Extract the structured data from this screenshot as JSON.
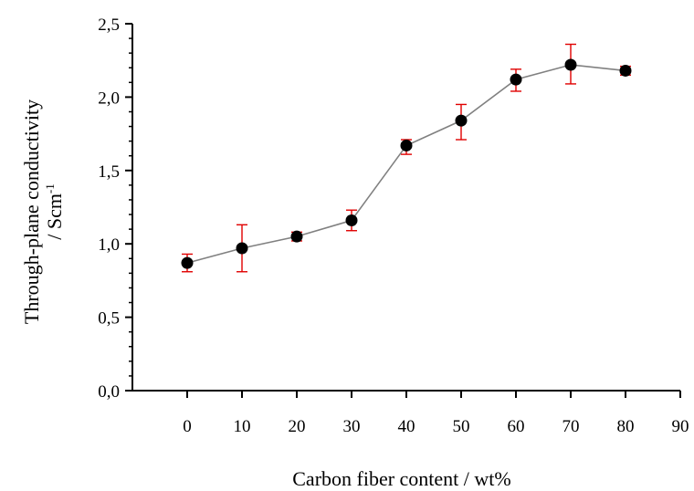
{
  "chart_data": {
    "type": "line",
    "title": "",
    "xlabel": "Carbon fiber content / wt%",
    "ylabel": "Through-plane conductivity",
    "ylabel_unit_prefix": "/ Scm",
    "ylabel_unit_exponent": "-1",
    "xlim": [
      -10,
      90
    ],
    "ylim": [
      0,
      2.5
    ],
    "x_ticks": [
      0,
      10,
      20,
      30,
      40,
      50,
      60,
      70,
      80,
      90
    ],
    "x_tick_labels": [
      "0",
      "10",
      "20",
      "30",
      "40",
      "50",
      "60",
      "70",
      "80",
      "90"
    ],
    "y_ticks": [
      0,
      0.5,
      1.0,
      1.5,
      2.0,
      2.5
    ],
    "y_tick_labels": [
      "0,0",
      "0,5",
      "1,0",
      "1,5",
      "2,0",
      "2,5"
    ],
    "grid": false,
    "legend": "none",
    "series": [
      {
        "x": [
          0,
          10,
          20,
          30,
          40,
          50,
          60,
          70,
          80
        ],
        "y": [
          0.87,
          0.97,
          1.05,
          1.16,
          1.67,
          1.84,
          2.12,
          2.22,
          2.18
        ],
        "err_low": [
          0.06,
          0.16,
          0.03,
          0.07,
          0.06,
          0.13,
          0.08,
          0.13,
          0.03
        ],
        "err_high": [
          0.06,
          0.16,
          0.03,
          0.07,
          0.04,
          0.11,
          0.07,
          0.14,
          0.03
        ],
        "line_color": "#808080",
        "marker_color": "#000000",
        "errorbar_color": "#e00000"
      }
    ]
  }
}
